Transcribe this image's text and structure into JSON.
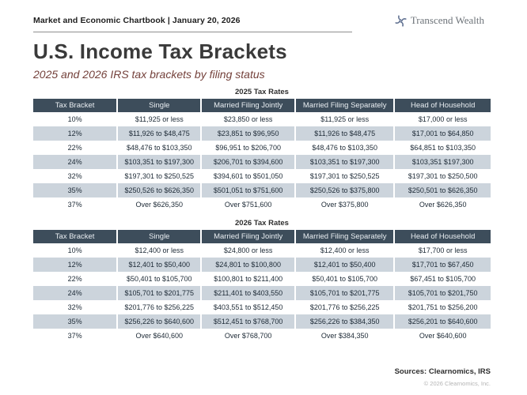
{
  "header": {
    "chartbook_label": "Market and Economic Chartbook | January 20, 2026",
    "brand_name": "Transcend Wealth"
  },
  "title": "U.S. Income Tax Brackets",
  "subtitle": "2025 and 2026 IRS tax brackets by filing status",
  "colors": {
    "table_header_bg": "#3d4d5b",
    "row_alt_bg": "#ccd4dc",
    "subtitle_text": "#74413b",
    "brand_icon": "#5f7090"
  },
  "icons": {
    "brand_icon": "pinwheel-icon"
  },
  "tables": [
    {
      "title": "2025 Tax Rates",
      "columns": [
        "Tax Bracket",
        "Single",
        "Married Filing Jointly",
        "Married Filing Separately",
        "Head of Household"
      ],
      "rows": [
        [
          "10%",
          "$11,925 or less",
          "$23,850 or less",
          "$11,925 or less",
          "$17,000 or less"
        ],
        [
          "12%",
          "$11,926 to $48,475",
          "$23,851 to $96,950",
          "$11,926 to $48,475",
          "$17,001 to $64,850"
        ],
        [
          "22%",
          "$48,476 to $103,350",
          "$96,951 to $206,700",
          "$48,476 to $103,350",
          "$64,851 to $103,350"
        ],
        [
          "24%",
          "$103,351 to $197,300",
          "$206,701 to $394,600",
          "$103,351 to $197,300",
          "$103,351 $197,300"
        ],
        [
          "32%",
          "$197,301 to $250,525",
          "$394,601 to $501,050",
          "$197,301 to $250,525",
          "$197,301 to $250,500"
        ],
        [
          "35%",
          "$250,526 to $626,350",
          "$501,051 to $751,600",
          "$250,526 to $375,800",
          "$250,501 to $626,350"
        ],
        [
          "37%",
          "Over $626,350",
          "Over $751,600",
          "Over $375,800",
          "Over $626,350"
        ]
      ]
    },
    {
      "title": "2026 Tax Rates",
      "columns": [
        "Tax Bracket",
        "Single",
        "Married Filing Jointly",
        "Married Filing Separately",
        "Head of Household"
      ],
      "rows": [
        [
          "10%",
          "$12,400 or less",
          "$24,800 or less",
          "$12,400 or less",
          "$17,700 or less"
        ],
        [
          "12%",
          "$12,401 to $50,400",
          "$24,801 to $100,800",
          "$12,401 to $50,400",
          "$17,701 to $67,450"
        ],
        [
          "22%",
          "$50,401 to $105,700",
          "$100,801 to $211,400",
          "$50,401 to $105,700",
          "$67,451 to $105,700"
        ],
        [
          "24%",
          "$105,701 to $201,775",
          "$211,401 to $403,550",
          "$105,701 to $201,775",
          "$105,701 to $201,750"
        ],
        [
          "32%",
          "$201,776 to $256,225",
          "$403,551 to $512,450",
          "$201,776 to $256,225",
          "$201,751 to $256,200"
        ],
        [
          "35%",
          "$256,226 to $640,600",
          "$512,451 to $768,700",
          "$256,226 to $384,350",
          "$256,201 to $640,600"
        ],
        [
          "37%",
          "Over $640,600",
          "Over $768,700",
          "Over $384,350",
          "Over $640,600"
        ]
      ]
    }
  ],
  "footer": {
    "sources": "Sources: Clearnomics, IRS",
    "copyright": "© 2026 Clearnomics, Inc."
  }
}
